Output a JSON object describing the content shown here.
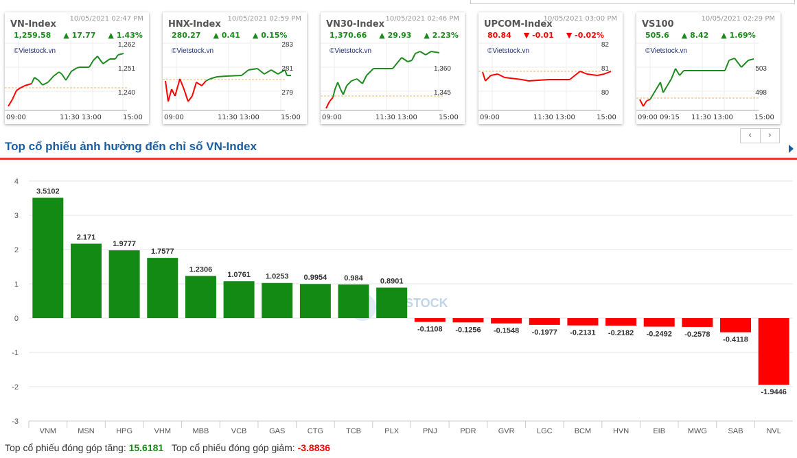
{
  "cards": [
    {
      "name": "VN-Index",
      "time": "10/05/2021 02:47 PM",
      "value": "1,259.58",
      "change": "17.77",
      "pct": "1.43%",
      "dir": "up",
      "yticks": [
        "1,262",
        "1,251",
        "1,240"
      ],
      "xticks": [
        "09:00",
        "11:30",
        "13:00",
        "15:00"
      ]
    },
    {
      "name": "HNX-Index",
      "time": "10/05/2021 02:59 PM",
      "value": "280.27",
      "change": "0.41",
      "pct": "0.15%",
      "dir": "up",
      "yticks": [
        "283",
        "281",
        "279"
      ],
      "xticks": [
        "09:00",
        "11:30",
        "13:00",
        "15:00"
      ]
    },
    {
      "name": "VN30-Index",
      "time": "10/05/2021 02:46 PM",
      "value": "1,370.66",
      "change": "29.93",
      "pct": "2.23%",
      "dir": "up",
      "yticks": [
        "",
        "1,360",
        "1,345"
      ],
      "xticks": [
        "09:00",
        "11:30",
        "13:00",
        "15:00"
      ]
    },
    {
      "name": "UPCOM-Index",
      "time": "10/05/2021 03:00 PM",
      "value": "80.84",
      "change": "-0.01",
      "pct": "-0.02%",
      "dir": "dn",
      "yticks": [
        "82",
        "81",
        "80"
      ],
      "xticks": [
        "09:00",
        "11:30",
        "13:00",
        "15:00"
      ]
    },
    {
      "name": "VS100",
      "time": "10/05/2021 02:29 PM",
      "value": "505.6",
      "change": "8.42",
      "pct": "1.69%",
      "dir": "up",
      "yticks": [
        "",
        "503",
        "498"
      ],
      "xticks": [
        "09:00 09:15",
        "11:30",
        "13:00",
        "15:00"
      ]
    }
  ],
  "watermark": "©Vietstock.vn",
  "pager": {
    "prev": "‹",
    "next": "›"
  },
  "section_title": "Top cổ phiếu ảnh hưởng đến chỉ số VN-Index",
  "chart_data": {
    "type": "bar",
    "categories": [
      "VNM",
      "MSN",
      "HPG",
      "VHM",
      "MBB",
      "VCB",
      "GAS",
      "CTG",
      "TCB",
      "PLX",
      "PNJ",
      "PDR",
      "GVR",
      "LGC",
      "BCM",
      "HVN",
      "EIB",
      "MWG",
      "SAB",
      "NVL"
    ],
    "values": [
      3.5102,
      2.171,
      1.9777,
      1.7577,
      1.2306,
      1.0761,
      1.0253,
      0.9954,
      0.984,
      0.8901,
      -0.1108,
      -0.1256,
      -0.1548,
      -0.1977,
      -0.2131,
      -0.2182,
      -0.2492,
      -0.2578,
      -0.4118,
      -1.9446
    ],
    "yticks": [
      4,
      3,
      2,
      1,
      0,
      -1,
      -2,
      -3
    ],
    "ylim": [
      -3,
      4
    ],
    "colors": {
      "pos": "#138a13",
      "neg": "#ff0000"
    }
  },
  "footer": {
    "up_label": "Top cổ phiếu đóng góp tăng:",
    "up_value": "15.6181",
    "down_label": "Top cổ phiếu đóng góp giảm:",
    "down_value": "-3.8836"
  }
}
